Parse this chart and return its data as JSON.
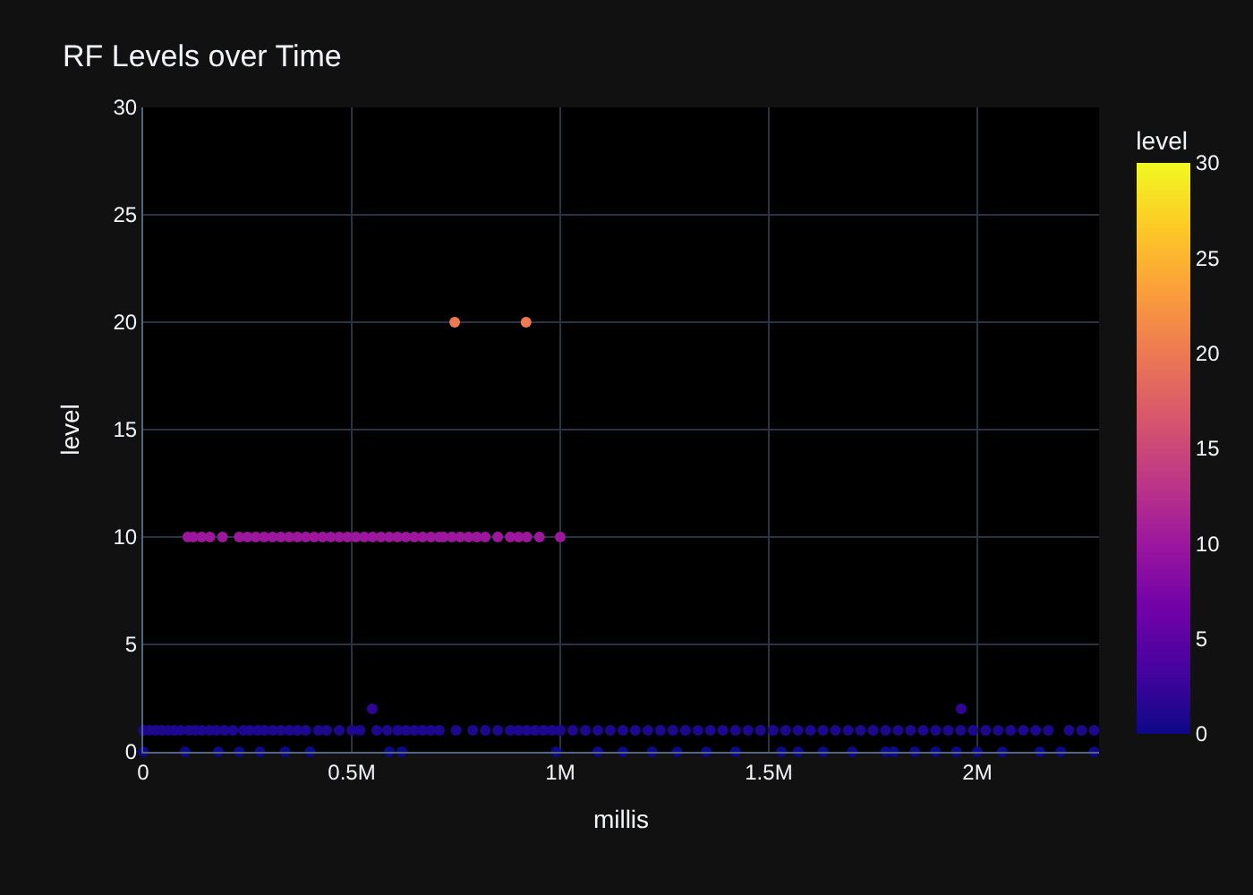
{
  "chart_data": {
    "type": "scatter",
    "title": "RF Levels over Time",
    "xlabel": "millis",
    "ylabel": "level",
    "clabel": "level",
    "series": [
      {
        "x": [
          747000,
          918000
        ],
        "values": [
          20,
          20
        ],
        "cvalues": [
          20,
          20
        ]
      },
      {
        "x": [
          549000,
          1961000
        ],
        "values": [
          2,
          2
        ],
        "cvalues": [
          2,
          2
        ]
      },
      {
        "x": [
          107000,
          120000,
          140000,
          160000,
          190000,
          230000,
          250000,
          270000,
          290000,
          310000,
          330000,
          350000,
          370000,
          390000,
          410000,
          430000,
          450000,
          470000,
          490000,
          510000,
          530000,
          550000,
          570000,
          590000,
          610000,
          630000,
          650000,
          670000,
          690000,
          710000,
          720000,
          740000,
          760000,
          780000,
          800000,
          820000,
          850000,
          880000,
          900000,
          920000,
          950000,
          1000000
        ],
        "values": [
          10,
          10,
          10,
          10,
          10,
          10,
          10,
          10,
          10,
          10,
          10,
          10,
          10,
          10,
          10,
          10,
          10,
          10,
          10,
          10,
          10,
          10,
          10,
          10,
          10,
          10,
          10,
          10,
          10,
          10,
          10,
          10,
          10,
          10,
          10,
          10,
          10,
          10,
          10,
          10,
          10,
          10
        ],
        "cvalues": [
          10,
          10,
          10,
          10,
          10,
          10,
          10,
          10,
          10,
          10,
          10,
          10,
          10,
          10,
          10,
          10,
          10,
          10,
          10,
          10,
          10,
          10,
          10,
          10,
          10,
          10,
          10,
          10,
          10,
          10,
          10,
          10,
          10,
          10,
          10,
          10,
          10,
          10,
          10,
          10,
          10,
          10
        ]
      },
      {
        "x": [
          0,
          15000,
          30000,
          45000,
          60000,
          75000,
          90000,
          110000,
          125000,
          140000,
          160000,
          175000,
          195000,
          215000,
          240000,
          255000,
          275000,
          290000,
          310000,
          330000,
          350000,
          370000,
          390000,
          420000,
          440000,
          470000,
          500000,
          520000,
          560000,
          585000,
          610000,
          630000,
          650000,
          670000,
          690000,
          710000,
          750000,
          790000,
          820000,
          850000,
          880000,
          900000,
          920000,
          940000,
          960000,
          980000,
          1000000,
          1030000,
          1060000,
          1090000,
          1120000,
          1150000,
          1180000,
          1210000,
          1240000,
          1270000,
          1300000,
          1330000,
          1360000,
          1390000,
          1420000,
          1450000,
          1480000,
          1510000,
          1540000,
          1570000,
          1600000,
          1630000,
          1660000,
          1690000,
          1720000,
          1750000,
          1780000,
          1810000,
          1840000,
          1870000,
          1900000,
          1930000,
          1960000,
          1990000,
          2020000,
          2050000,
          2080000,
          2110000,
          2140000,
          2170000,
          2220000,
          2250000,
          2280000
        ],
        "values": [
          1,
          1,
          1,
          1,
          1,
          1,
          1,
          1,
          1,
          1,
          1,
          1,
          1,
          1,
          1,
          1,
          1,
          1,
          1,
          1,
          1,
          1,
          1,
          1,
          1,
          1,
          1,
          1,
          1,
          1,
          1,
          1,
          1,
          1,
          1,
          1,
          1,
          1,
          1,
          1,
          1,
          1,
          1,
          1,
          1,
          1,
          1,
          1,
          1,
          1,
          1,
          1,
          1,
          1,
          1,
          1,
          1,
          1,
          1,
          1,
          1,
          1,
          1,
          1,
          1,
          1,
          1,
          1,
          1,
          1,
          1,
          1,
          1,
          1,
          1,
          1,
          1,
          1,
          1,
          1,
          1,
          1,
          1,
          1,
          1,
          1,
          1,
          1,
          1
        ],
        "cvalues": [
          1,
          1,
          1,
          1,
          1,
          1,
          1,
          1,
          1,
          1,
          1,
          1,
          1,
          1,
          1,
          1,
          1,
          1,
          1,
          1,
          1,
          1,
          1,
          1,
          1,
          1,
          1,
          1,
          1,
          1,
          1,
          1,
          1,
          1,
          1,
          1,
          1,
          1,
          1,
          1,
          1,
          1,
          1,
          1,
          1,
          1,
          1,
          1,
          1,
          1,
          1,
          1,
          1,
          1,
          1,
          1,
          1,
          1,
          1,
          1,
          1,
          1,
          1,
          1,
          1,
          1,
          1,
          1,
          1,
          1,
          1,
          1,
          1,
          1,
          1,
          1,
          1,
          1,
          1,
          1,
          1,
          1,
          1,
          1,
          1,
          1,
          1,
          1,
          1
        ]
      },
      {
        "x": [
          0,
          100000,
          180000,
          230000,
          280000,
          340000,
          400000,
          590000,
          620000,
          990000,
          1090000,
          1150000,
          1220000,
          1280000,
          1350000,
          1420000,
          1530000,
          1570000,
          1630000,
          1700000,
          1780000,
          1800000,
          1850000,
          1900000,
          1950000,
          2000000,
          2060000,
          2150000,
          2200000,
          2280000
        ],
        "values": [
          0,
          0,
          0,
          0,
          0,
          0,
          0,
          0,
          0,
          0,
          0,
          0,
          0,
          0,
          0,
          0,
          0,
          0,
          0,
          0,
          0,
          0,
          0,
          0,
          0,
          0,
          0,
          0,
          0,
          0
        ],
        "cvalues": [
          0,
          0,
          0,
          0,
          0,
          0,
          0,
          0,
          0,
          0,
          0,
          0,
          0,
          0,
          0,
          0,
          0,
          0,
          0,
          0,
          0,
          0,
          0,
          0,
          0,
          0,
          0,
          0,
          0,
          0
        ]
      }
    ],
    "xlim": [
      0,
      2292000
    ],
    "xticks": [
      0,
      {
        "value": 500000,
        "label": "0.5M"
      },
      {
        "value": 1000000,
        "label": "1M"
      },
      {
        "value": 1500000,
        "label": "1.5M"
      },
      {
        "value": 2000000,
        "label": "2M"
      }
    ],
    "ylim": [
      0,
      30
    ],
    "yticks": [
      0,
      5,
      10,
      15,
      20,
      25,
      30
    ],
    "clim": [
      0,
      30
    ],
    "cticks": [
      0,
      5,
      10,
      15,
      20,
      25,
      30
    ],
    "grid": true,
    "marker": "circle"
  }
}
